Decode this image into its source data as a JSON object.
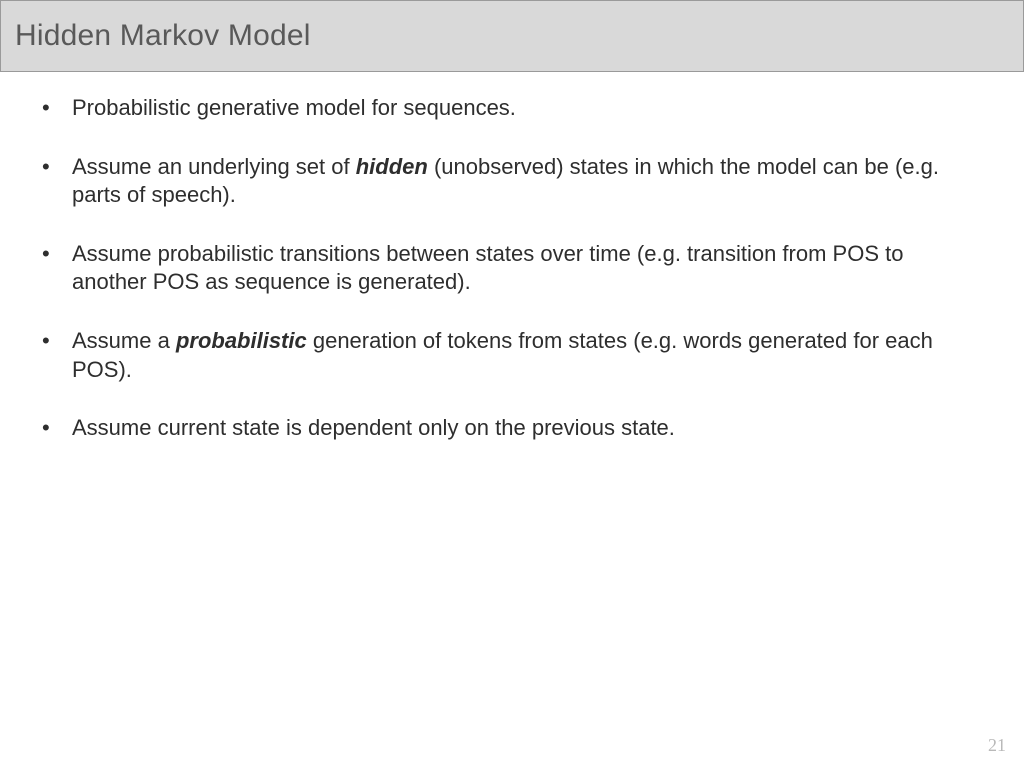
{
  "header": {
    "title": "Hidden Markov Model",
    "background_color": "#d9d9d9",
    "border_color": "#9a9a9a",
    "text_color": "#595959",
    "title_fontsize": 30
  },
  "bullets": [
    {
      "pre": "Probabilistic generative model for sequences.",
      "bold": "",
      "post": ""
    },
    {
      "pre": "Assume an underlying set of ",
      "bold": "hidden",
      "post": " (unobserved) states in which the model can be (e.g. parts of speech)."
    },
    {
      "pre": "Assume probabilistic transitions between states over time (e.g. transition from POS to another POS as sequence is generated).",
      "bold": "",
      "post": ""
    },
    {
      "pre": "Assume a ",
      "bold": "probabilistic",
      "post": " generation of tokens from states (e.g. words generated for each POS)."
    },
    {
      "pre": "Assume current state is dependent only on the previous state.",
      "bold": "",
      "post": ""
    }
  ],
  "body_text_color": "#2e2e2e",
  "body_fontsize": 22,
  "page_number": "21",
  "page_number_color": "#b9b9b9",
  "background_color": "#ffffff"
}
